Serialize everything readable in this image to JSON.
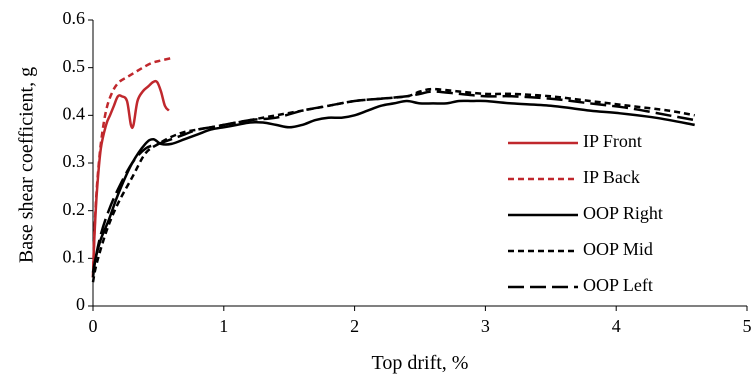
{
  "chart_data": {
    "type": "line",
    "title": "",
    "xlabel": "Top drift, %",
    "ylabel": "Base shear coefficient, g",
    "xlim": [
      0,
      5
    ],
    "ylim": [
      0,
      0.6
    ],
    "xticks": [
      0,
      1,
      2,
      3,
      4,
      5
    ],
    "yticks": [
      0,
      0.1,
      0.2,
      0.3,
      0.4,
      0.5,
      0.6
    ],
    "grid": false,
    "legend_position": "right",
    "series": [
      {
        "name": "IP Front",
        "color": "#c0282d",
        "dash": "solid",
        "x": [
          0,
          0.01,
          0.03,
          0.06,
          0.1,
          0.13,
          0.16,
          0.19,
          0.22,
          0.26,
          0.29,
          0.31,
          0.34,
          0.38,
          0.42,
          0.46,
          0.49,
          0.52,
          0.55,
          0.58
        ],
        "y": [
          0.06,
          0.14,
          0.24,
          0.33,
          0.38,
          0.4,
          0.42,
          0.44,
          0.44,
          0.43,
          0.38,
          0.38,
          0.43,
          0.45,
          0.46,
          0.47,
          0.47,
          0.45,
          0.42,
          0.41
        ]
      },
      {
        "name": "IP Back",
        "color": "#c0282d",
        "dash": "short",
        "x": [
          0,
          0.01,
          0.03,
          0.06,
          0.1,
          0.15,
          0.2,
          0.26,
          0.32,
          0.38,
          0.45,
          0.52,
          0.6
        ],
        "y": [
          0.06,
          0.15,
          0.25,
          0.34,
          0.41,
          0.45,
          0.47,
          0.48,
          0.49,
          0.5,
          0.51,
          0.515,
          0.52
        ]
      },
      {
        "name": "OOP Right",
        "color": "#000000",
        "dash": "solid",
        "x": [
          0,
          0.02,
          0.06,
          0.12,
          0.2,
          0.3,
          0.4,
          0.46,
          0.52,
          0.6,
          0.7,
          0.8,
          0.9,
          1.0,
          1.1,
          1.2,
          1.3,
          1.4,
          1.5,
          1.6,
          1.7,
          1.8,
          1.9,
          2.0,
          2.1,
          2.2,
          2.3,
          2.4,
          2.5,
          2.6,
          2.7,
          2.8,
          2.9,
          3.0,
          3.2,
          3.5,
          3.8,
          4.0,
          4.3,
          4.6
        ],
        "y": [
          0.07,
          0.1,
          0.14,
          0.18,
          0.24,
          0.3,
          0.34,
          0.35,
          0.34,
          0.34,
          0.35,
          0.36,
          0.37,
          0.375,
          0.38,
          0.385,
          0.385,
          0.38,
          0.375,
          0.38,
          0.39,
          0.395,
          0.395,
          0.4,
          0.41,
          0.42,
          0.425,
          0.43,
          0.425,
          0.425,
          0.425,
          0.43,
          0.43,
          0.43,
          0.425,
          0.42,
          0.41,
          0.405,
          0.395,
          0.38
        ]
      },
      {
        "name": "OOP Mid",
        "color": "#000000",
        "dash": "short",
        "x": [
          0,
          0.02,
          0.06,
          0.12,
          0.2,
          0.3,
          0.4,
          0.5,
          0.6,
          0.7,
          0.8,
          0.9,
          1.0,
          1.2,
          1.4,
          1.6,
          1.8,
          2.0,
          2.2,
          2.4,
          2.5,
          2.6,
          2.8,
          3.0,
          3.2,
          3.5,
          3.8,
          4.1,
          4.4,
          4.6
        ],
        "y": [
          0.05,
          0.08,
          0.12,
          0.17,
          0.22,
          0.27,
          0.32,
          0.34,
          0.355,
          0.365,
          0.37,
          0.375,
          0.38,
          0.39,
          0.4,
          0.41,
          0.42,
          0.43,
          0.435,
          0.44,
          0.45,
          0.455,
          0.45,
          0.445,
          0.445,
          0.44,
          0.43,
          0.42,
          0.41,
          0.4
        ]
      },
      {
        "name": "OOP Left",
        "color": "#000000",
        "dash": "long",
        "x": [
          0,
          0.02,
          0.06,
          0.12,
          0.2,
          0.3,
          0.4,
          0.5,
          0.6,
          0.7,
          0.8,
          0.9,
          1.0,
          1.2,
          1.4,
          1.6,
          1.8,
          2.0,
          2.2,
          2.4,
          2.5,
          2.6,
          2.8,
          3.0,
          3.2,
          3.5,
          3.8,
          4.1,
          4.4,
          4.6
        ],
        "y": [
          0.06,
          0.1,
          0.15,
          0.2,
          0.25,
          0.3,
          0.33,
          0.34,
          0.35,
          0.36,
          0.37,
          0.375,
          0.38,
          0.39,
          0.395,
          0.41,
          0.42,
          0.43,
          0.435,
          0.44,
          0.445,
          0.45,
          0.445,
          0.44,
          0.44,
          0.435,
          0.425,
          0.415,
          0.4,
          0.39
        ]
      }
    ]
  }
}
